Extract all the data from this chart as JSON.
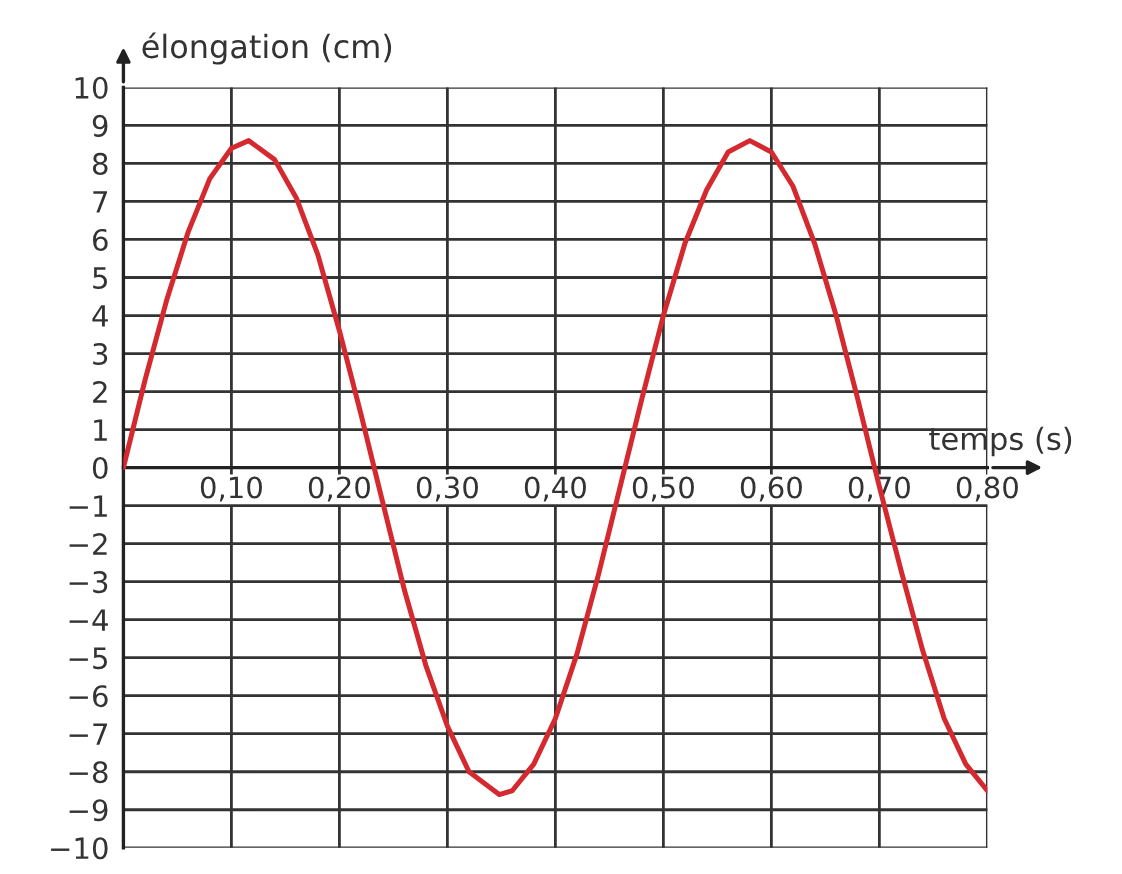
{
  "chart_data": {
    "type": "line",
    "xlabel": "temps (s)",
    "ylabel": "élongation (cm)",
    "x": [
      0,
      0.02,
      0.04,
      0.06,
      0.08,
      0.1,
      0.116,
      0.14,
      0.16,
      0.18,
      0.2,
      0.22,
      0.24,
      0.26,
      0.28,
      0.3,
      0.32,
      0.348,
      0.36,
      0.38,
      0.4,
      0.42,
      0.44,
      0.46,
      0.48,
      0.5,
      0.52,
      0.54,
      0.56,
      0.58,
      0.6,
      0.62,
      0.64,
      0.66,
      0.68,
      0.7,
      0.72,
      0.74,
      0.76,
      0.78,
      0.8
    ],
    "series": [
      {
        "color": "#d42a2f",
        "values": [
          0,
          2.3,
          4.4,
          6.2,
          7.6,
          8.4,
          8.6,
          8.1,
          7.1,
          5.6,
          3.6,
          1.4,
          -0.9,
          -3.2,
          -5.2,
          -6.8,
          -8.0,
          -8.6,
          -8.5,
          -7.8,
          -6.6,
          -4.9,
          -2.8,
          -0.5,
          1.8,
          4.0,
          5.9,
          7.3,
          8.3,
          8.6,
          8.3,
          7.4,
          5.9,
          4.0,
          1.8,
          -0.5,
          -2.7,
          -4.8,
          -6.6,
          -7.8,
          -8.5
        ]
      }
    ],
    "xlim": [
      0,
      0.8
    ],
    "ylim": [
      -10,
      10
    ],
    "xticks": [
      {
        "value": 0.1,
        "label": "0,10"
      },
      {
        "value": 0.2,
        "label": "0,20"
      },
      {
        "value": 0.3,
        "label": "0,30"
      },
      {
        "value": 0.4,
        "label": "0,40"
      },
      {
        "value": 0.5,
        "label": "0,50"
      },
      {
        "value": 0.6,
        "label": "0,60"
      },
      {
        "value": 0.7,
        "label": "0,70"
      },
      {
        "value": 0.8,
        "label": "0,80"
      }
    ],
    "yticks": [
      -10,
      -9,
      -8,
      -7,
      -6,
      -5,
      -4,
      -3,
      -2,
      -1,
      0,
      1,
      2,
      3,
      4,
      5,
      6,
      7,
      8,
      9,
      10
    ],
    "grid": true,
    "line_style": "solid"
  }
}
